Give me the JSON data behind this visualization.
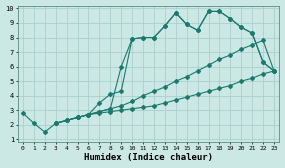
{
  "background_color": "#cce8e5",
  "grid_color": "#aacfcc",
  "line_color": "#1a7a6e",
  "marker": "D",
  "marker_size": 2.0,
  "line_width": 0.8,
  "xlabel": "Humidex (Indice chaleur)",
  "xlim": [
    -0.5,
    23.5
  ],
  "ylim": [
    0.8,
    10.2
  ],
  "xticks": [
    0,
    1,
    2,
    3,
    4,
    5,
    6,
    7,
    8,
    9,
    10,
    11,
    12,
    13,
    14,
    15,
    16,
    17,
    18,
    19,
    20,
    21,
    22,
    23
  ],
  "yticks": [
    1,
    2,
    3,
    4,
    5,
    6,
    7,
    8,
    9,
    10
  ],
  "series": [
    {
      "x": [
        0,
        1,
        2,
        3,
        4,
        5,
        6,
        7,
        8,
        9,
        10,
        11,
        12,
        13,
        14,
        15,
        16,
        17,
        18,
        19,
        20,
        21,
        22,
        23
      ],
      "y": [
        2.8,
        2.1,
        1.5,
        2.1,
        2.3,
        2.5,
        2.7,
        2.8,
        2.9,
        3.0,
        3.1,
        3.2,
        3.3,
        3.5,
        3.7,
        3.9,
        4.1,
        4.3,
        4.5,
        4.7,
        5.0,
        5.2,
        5.5,
        5.7
      ]
    },
    {
      "x": [
        3,
        4,
        5,
        6,
        7,
        8,
        9,
        10,
        11,
        12,
        13,
        14,
        15,
        16,
        17,
        18,
        19,
        20,
        21,
        22,
        23
      ],
      "y": [
        2.1,
        2.3,
        2.5,
        2.7,
        2.9,
        3.1,
        6.0,
        7.9,
        8.0,
        8.0,
        8.8,
        9.7,
        8.9,
        8.5,
        9.8,
        9.8,
        9.3,
        8.7,
        8.3,
        6.3,
        5.7
      ]
    },
    {
      "x": [
        3,
        4,
        5,
        6,
        7,
        8,
        9,
        10,
        11,
        12,
        13,
        14,
        15,
        16,
        17,
        18,
        19,
        20,
        21,
        22,
        23
      ],
      "y": [
        2.1,
        2.3,
        2.5,
        2.7,
        3.5,
        4.1,
        4.3,
        7.9,
        8.0,
        8.0,
        8.8,
        9.7,
        8.9,
        8.5,
        9.8,
        9.8,
        9.3,
        8.7,
        8.3,
        6.3,
        5.7
      ]
    },
    {
      "x": [
        3,
        5,
        6,
        7,
        8,
        9,
        10,
        11,
        12,
        13,
        14,
        15,
        16,
        17,
        18,
        19,
        20,
        21,
        22,
        23
      ],
      "y": [
        2.1,
        2.5,
        2.7,
        2.9,
        3.1,
        3.3,
        3.6,
        4.0,
        4.3,
        4.6,
        5.0,
        5.3,
        5.7,
        6.1,
        6.5,
        6.8,
        7.2,
        7.5,
        7.8,
        5.7
      ]
    }
  ]
}
